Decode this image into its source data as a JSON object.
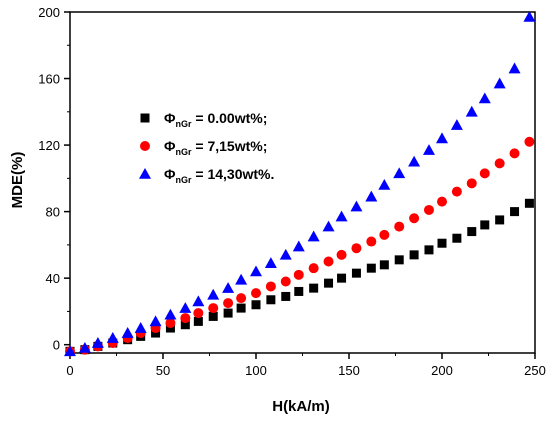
{
  "chart_data": {
    "type": "scatter",
    "title": "",
    "xlabel": "H(kA/m)",
    "ylabel": "MDE(%)",
    "xlim": [
      0,
      250
    ],
    "ylim": [
      -5,
      200
    ],
    "xticks": [
      "0",
      "50",
      "100",
      "150",
      "200",
      "250"
    ],
    "yticks": [
      "0",
      "40",
      "80",
      "120",
      "160",
      "200"
    ],
    "legend_position": "upper-left",
    "series": [
      {
        "name": "ΦnGr = 0.00wt%;",
        "legend_symbol": "Φ",
        "legend_sub": "nGr",
        "legend_value": "=   0.00wt%;",
        "marker": "square",
        "color": "#000000",
        "x": [
          0,
          8,
          15,
          23,
          31,
          38,
          46,
          54,
          62,
          69,
          77,
          85,
          92,
          100,
          108,
          116,
          123,
          131,
          139,
          146,
          154,
          162,
          169,
          177,
          185,
          193,
          200,
          208,
          216,
          223,
          231,
          239,
          247
        ],
        "y": [
          -4,
          -3,
          -1,
          1,
          3,
          5,
          7,
          10,
          12,
          14,
          17,
          19,
          22,
          24,
          27,
          29,
          32,
          34,
          37,
          40,
          43,
          46,
          48,
          51,
          54,
          57,
          61,
          64,
          68,
          72,
          75,
          80,
          85
        ]
      },
      {
        "name": "ΦnGr = 7,15wt%;",
        "legend_symbol": "Φ",
        "legend_sub": "nGr",
        "legend_value": "=   7,15wt%;",
        "marker": "circle",
        "color": "#ff0000",
        "x": [
          0,
          8,
          15,
          23,
          31,
          38,
          46,
          54,
          62,
          69,
          77,
          85,
          92,
          100,
          108,
          116,
          123,
          131,
          139,
          146,
          154,
          162,
          169,
          177,
          185,
          193,
          200,
          208,
          216,
          223,
          231,
          239,
          247
        ],
        "y": [
          -4,
          -3,
          -1,
          1,
          4,
          7,
          10,
          13,
          16,
          19,
          22,
          25,
          28,
          31,
          35,
          38,
          42,
          46,
          50,
          54,
          58,
          62,
          66,
          71,
          76,
          81,
          86,
          92,
          97,
          103,
          109,
          115,
          122
        ]
      },
      {
        "name": "ΦnGr = 14,30wt%.",
        "legend_symbol": "Φ",
        "legend_sub": "nGr",
        "legend_value": "= 14,30wt%.",
        "marker": "triangle",
        "color": "#0000ff",
        "x": [
          0,
          8,
          15,
          23,
          31,
          38,
          46,
          54,
          62,
          69,
          77,
          85,
          92,
          100,
          108,
          116,
          123,
          131,
          139,
          146,
          154,
          162,
          169,
          177,
          185,
          193,
          200,
          208,
          216,
          223,
          231,
          239,
          247
        ],
        "y": [
          -4,
          -2,
          1,
          4,
          7,
          10,
          14,
          18,
          22,
          26,
          30,
          34,
          39,
          44,
          49,
          54,
          59,
          65,
          71,
          77,
          83,
          89,
          96,
          103,
          110,
          117,
          124,
          132,
          140,
          148,
          157,
          166,
          197
        ]
      }
    ]
  }
}
